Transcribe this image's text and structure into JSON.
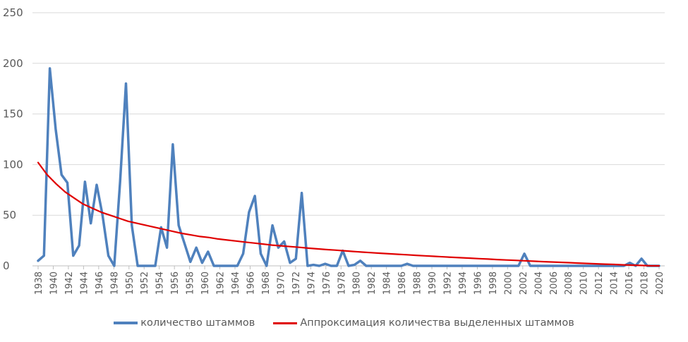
{
  "chart_data": {
    "type": "line",
    "title": "",
    "xlabel": "",
    "ylabel": "",
    "ylim": [
      0,
      250
    ],
    "yticks": [
      "0",
      "50",
      "100",
      "150",
      "200",
      "250"
    ],
    "grid": true,
    "legend_position": "bottom",
    "x_start": 1938,
    "x_end": 2020,
    "x_tick_labels": [
      "1938",
      "1940",
      "1942",
      "1944",
      "1946",
      "1948",
      "1950",
      "1952",
      "1954",
      "1956",
      "1958",
      "1960",
      "1962",
      "1964",
      "1966",
      "1968",
      "1970",
      "1972",
      "1974",
      "1976",
      "1978",
      "1980",
      "1982",
      "1984",
      "1986",
      "1988",
      "1990",
      "1992",
      "1994",
      "1996",
      "1998",
      "2000",
      "2002",
      "2004",
      "2006",
      "2008",
      "2010",
      "2012",
      "2014",
      "2016",
      "2018",
      "2020"
    ],
    "series": [
      {
        "name": "количество штаммов",
        "color": "#4f81bd",
        "values": [
          5,
          10,
          195,
          135,
          90,
          82,
          10,
          20,
          83,
          42,
          80,
          50,
          10,
          0,
          83,
          180,
          40,
          0,
          0,
          0,
          0,
          38,
          18,
          120,
          40,
          22,
          4,
          18,
          3,
          14,
          0,
          0,
          0,
          0,
          0,
          12,
          53,
          69,
          12,
          0,
          40,
          18,
          24,
          3,
          7,
          72,
          0,
          1,
          0,
          2,
          0,
          0,
          15,
          0,
          1,
          5,
          0,
          0,
          0,
          0,
          0,
          0,
          0,
          2,
          0,
          0,
          0,
          0,
          0,
          0,
          0,
          0,
          0,
          0,
          0,
          0,
          0,
          0,
          0,
          0,
          0,
          0,
          0,
          12,
          0,
          0,
          0,
          0,
          0,
          0,
          0,
          0,
          0,
          0,
          0,
          0,
          0,
          0,
          0,
          0,
          0,
          3,
          0,
          7,
          0,
          0,
          0
        ]
      },
      {
        "name": "Аппроксимация количества выделенных штаммов",
        "color": "#e00000",
        "type": "logarithmic-trend",
        "values": [
          102,
          90,
          81,
          73,
          67,
          61,
          57,
          53,
          50,
          47,
          44,
          42,
          40,
          38,
          36,
          34,
          32,
          30.5,
          29,
          28,
          26.5,
          25.5,
          24.5,
          23.5,
          22.5,
          21.5,
          20.5,
          19.8,
          19,
          18.3,
          17.5,
          16.8,
          16.1,
          15.5,
          14.9,
          14.2,
          13.6,
          13,
          12.5,
          11.9,
          11.4,
          10.9,
          10.4,
          9.9,
          9.4,
          8.9,
          8.4,
          8,
          7.6,
          7.1,
          6.7,
          6.2,
          5.8,
          5.4,
          5,
          4.6,
          4.2,
          3.8,
          3.5,
          3.1,
          2.7,
          2.4,
          2,
          1.7,
          1.4,
          1,
          0.7,
          0.4,
          0.1,
          0
        ]
      }
    ]
  }
}
